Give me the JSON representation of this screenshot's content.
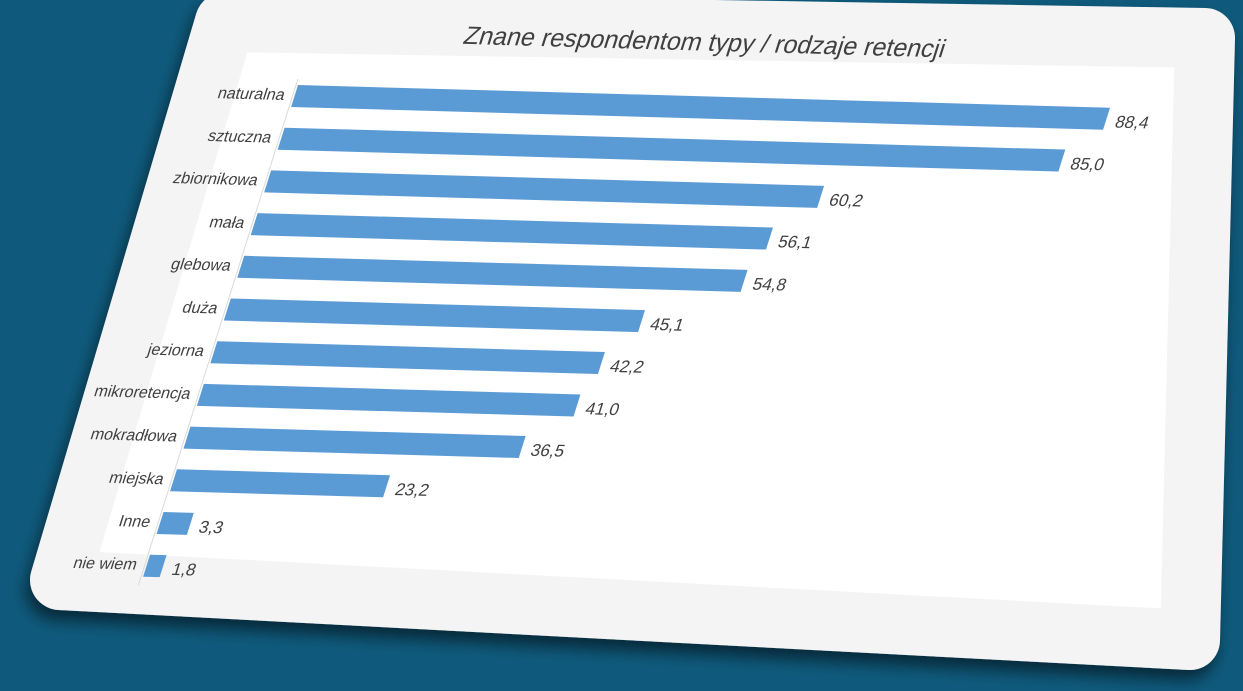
{
  "chart_data": {
    "type": "bar",
    "orientation": "horizontal",
    "title": "Znane respondentom typy / rodzaje retencji",
    "categories": [
      "naturalna",
      "sztuczna",
      "zbiornikowa",
      "mała",
      "glebowa",
      "duża",
      "jeziorna",
      "mikroretencja",
      "mokradłowa",
      "miejska",
      "Inne",
      "nie wiem"
    ],
    "values": [
      88.4,
      85.0,
      60.2,
      56.1,
      54.8,
      45.1,
      42.2,
      41.0,
      36.5,
      23.2,
      3.3,
      1.8
    ],
    "value_labels": [
      "88,4",
      "85,0",
      "60,2",
      "56,1",
      "54,8",
      "45,1",
      "42,2",
      "41,0",
      "36,5",
      "23,2",
      "3,3",
      "1,8"
    ],
    "color": "#5b9bd5"
  }
}
